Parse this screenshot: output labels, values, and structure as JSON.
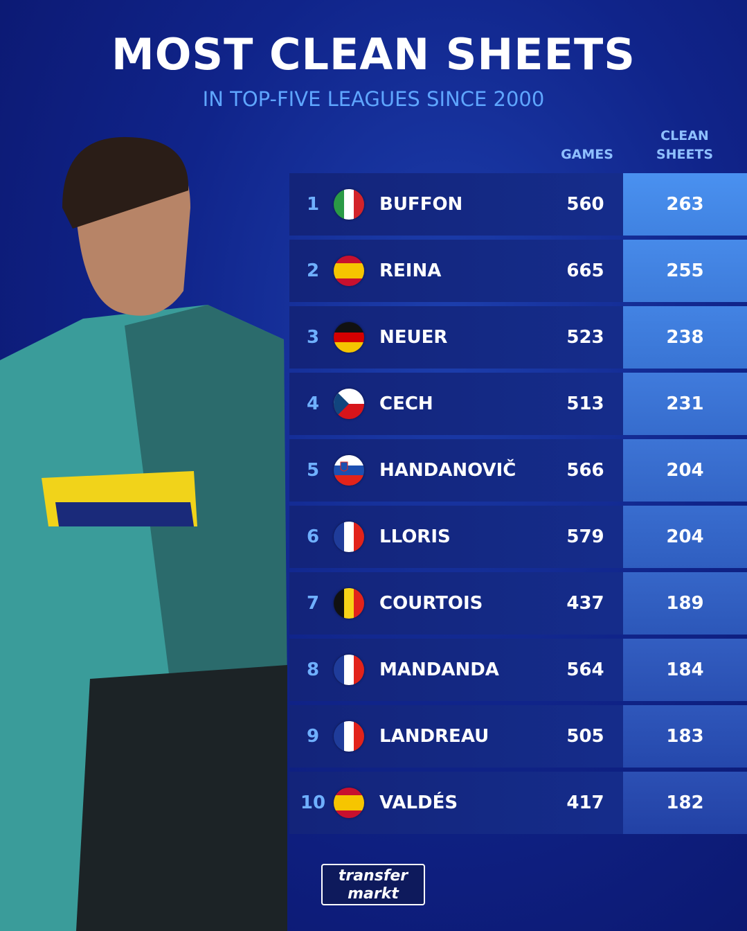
{
  "header": {
    "title": "MOST CLEAN SHEETS",
    "subtitle": "IN TOP-FIVE LEAGUES SINCE 2000"
  },
  "table": {
    "columns": [
      "GAMES",
      "CLEAN SHEETS"
    ],
    "rows": [
      [
        1,
        "BUFFON",
        560,
        263
      ],
      [
        2,
        "REINA",
        665,
        255
      ],
      [
        3,
        "NEUER",
        523,
        238
      ],
      [
        4,
        "CECH",
        513,
        231
      ],
      [
        5,
        "HANDANOVIČ",
        566,
        204
      ],
      [
        6,
        "LLORIS",
        579,
        204
      ],
      [
        7,
        "COURTOIS",
        437,
        189
      ],
      [
        8,
        "MANDANDA",
        564,
        184
      ],
      [
        9,
        "LANDREAU",
        505,
        183
      ],
      [
        10,
        "VALDÉS",
        417,
        182
      ]
    ]
  },
  "footer": {
    "logo": [
      "transfer",
      "markt"
    ]
  }
}
